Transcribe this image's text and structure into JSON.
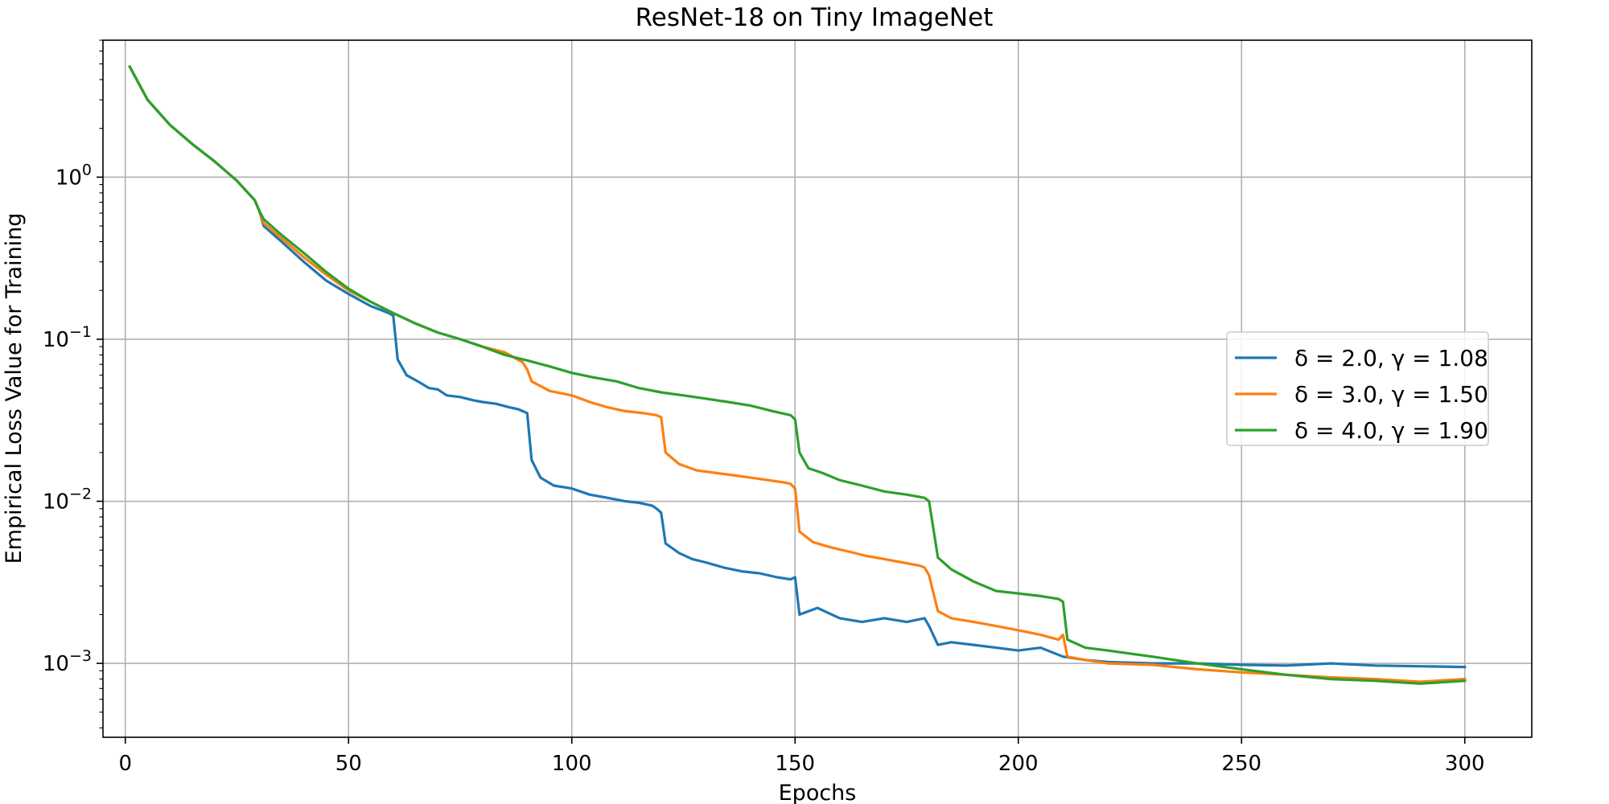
{
  "chart_data": {
    "type": "line",
    "title": "ResNet-18 on Tiny ImageNet",
    "xlabel": "Epochs",
    "ylabel": "Empirical Loss Value for Training",
    "xlim": [
      -5,
      315
    ],
    "ylim": [
      0.00035,
      7.0
    ],
    "yscale": "log",
    "x_ticks": [
      0,
      50,
      100,
      150,
      200,
      250,
      300
    ],
    "y_ticks": [
      {
        "value": 0.001,
        "base": "10",
        "exp": "−3"
      },
      {
        "value": 0.01,
        "base": "10",
        "exp": "−2"
      },
      {
        "value": 0.1,
        "base": "10",
        "exp": "−1"
      },
      {
        "value": 1,
        "base": "10",
        "exp": "0"
      }
    ],
    "grid": true,
    "legend_position": "center-right",
    "series": [
      {
        "name": "δ = 2.0, γ = 1.08",
        "color": "#1f77b4",
        "points": [
          [
            1,
            4.8
          ],
          [
            5,
            3.0
          ],
          [
            10,
            2.1
          ],
          [
            15,
            1.6
          ],
          [
            20,
            1.25
          ],
          [
            25,
            0.95
          ],
          [
            29,
            0.72
          ],
          [
            30,
            0.62
          ],
          [
            31,
            0.5
          ],
          [
            35,
            0.4
          ],
          [
            40,
            0.3
          ],
          [
            45,
            0.23
          ],
          [
            50,
            0.19
          ],
          [
            55,
            0.16
          ],
          [
            59,
            0.145
          ],
          [
            60,
            0.14
          ],
          [
            61,
            0.075
          ],
          [
            63,
            0.06
          ],
          [
            66,
            0.054
          ],
          [
            68,
            0.05
          ],
          [
            70,
            0.049
          ],
          [
            72,
            0.045
          ],
          [
            75,
            0.044
          ],
          [
            78,
            0.042
          ],
          [
            80,
            0.041
          ],
          [
            83,
            0.04
          ],
          [
            86,
            0.038
          ],
          [
            88,
            0.037
          ],
          [
            89,
            0.036
          ],
          [
            90,
            0.035
          ],
          [
            91,
            0.018
          ],
          [
            93,
            0.014
          ],
          [
            96,
            0.0125
          ],
          [
            100,
            0.012
          ],
          [
            104,
            0.011
          ],
          [
            108,
            0.0105
          ],
          [
            112,
            0.01
          ],
          [
            115,
            0.0098
          ],
          [
            118,
            0.0094
          ],
          [
            119,
            0.009
          ],
          [
            120,
            0.0085
          ],
          [
            121,
            0.0055
          ],
          [
            124,
            0.0048
          ],
          [
            127,
            0.0044
          ],
          [
            130,
            0.0042
          ],
          [
            134,
            0.0039
          ],
          [
            138,
            0.0037
          ],
          [
            142,
            0.0036
          ],
          [
            146,
            0.0034
          ],
          [
            149,
            0.0033
          ],
          [
            150,
            0.0034
          ],
          [
            151,
            0.002
          ],
          [
            155,
            0.0022
          ],
          [
            160,
            0.0019
          ],
          [
            165,
            0.0018
          ],
          [
            170,
            0.0019
          ],
          [
            175,
            0.0018
          ],
          [
            179,
            0.0019
          ],
          [
            180,
            0.0017
          ],
          [
            182,
            0.0013
          ],
          [
            185,
            0.00135
          ],
          [
            190,
            0.0013
          ],
          [
            195,
            0.00125
          ],
          [
            200,
            0.0012
          ],
          [
            205,
            0.00125
          ],
          [
            210,
            0.0011
          ],
          [
            215,
            0.00105
          ],
          [
            220,
            0.00102
          ],
          [
            230,
            0.001
          ],
          [
            240,
            0.001
          ],
          [
            250,
            0.00098
          ],
          [
            260,
            0.00097
          ],
          [
            270,
            0.001
          ],
          [
            280,
            0.00097
          ],
          [
            290,
            0.00096
          ],
          [
            300,
            0.00095
          ]
        ]
      },
      {
        "name": "δ = 3.0, γ = 1.50",
        "color": "#ff7f0e",
        "points": [
          [
            1,
            4.8
          ],
          [
            5,
            3.0
          ],
          [
            10,
            2.1
          ],
          [
            15,
            1.6
          ],
          [
            20,
            1.25
          ],
          [
            25,
            0.95
          ],
          [
            29,
            0.72
          ],
          [
            30,
            0.62
          ],
          [
            31,
            0.52
          ],
          [
            35,
            0.42
          ],
          [
            40,
            0.32
          ],
          [
            45,
            0.25
          ],
          [
            50,
            0.2
          ],
          [
            55,
            0.17
          ],
          [
            60,
            0.145
          ],
          [
            65,
            0.125
          ],
          [
            70,
            0.11
          ],
          [
            75,
            0.1
          ],
          [
            80,
            0.09
          ],
          [
            85,
            0.083
          ],
          [
            89,
            0.072
          ],
          [
            90,
            0.065
          ],
          [
            91,
            0.055
          ],
          [
            95,
            0.048
          ],
          [
            100,
            0.045
          ],
          [
            104,
            0.041
          ],
          [
            108,
            0.038
          ],
          [
            112,
            0.036
          ],
          [
            116,
            0.035
          ],
          [
            119,
            0.034
          ],
          [
            120,
            0.033
          ],
          [
            121,
            0.02
          ],
          [
            124,
            0.017
          ],
          [
            128,
            0.0155
          ],
          [
            132,
            0.015
          ],
          [
            136,
            0.0145
          ],
          [
            140,
            0.014
          ],
          [
            144,
            0.0135
          ],
          [
            148,
            0.013
          ],
          [
            149,
            0.0128
          ],
          [
            150,
            0.012
          ],
          [
            151,
            0.0065
          ],
          [
            154,
            0.0056
          ],
          [
            158,
            0.0052
          ],
          [
            162,
            0.0049
          ],
          [
            166,
            0.0046
          ],
          [
            170,
            0.0044
          ],
          [
            174,
            0.0042
          ],
          [
            178,
            0.004
          ],
          [
            179,
            0.0039
          ],
          [
            180,
            0.0035
          ],
          [
            182,
            0.0021
          ],
          [
            185,
            0.0019
          ],
          [
            190,
            0.0018
          ],
          [
            195,
            0.0017
          ],
          [
            200,
            0.0016
          ],
          [
            205,
            0.0015
          ],
          [
            209,
            0.0014
          ],
          [
            210,
            0.0015
          ],
          [
            211,
            0.0011
          ],
          [
            215,
            0.00105
          ],
          [
            220,
            0.001
          ],
          [
            230,
            0.00098
          ],
          [
            240,
            0.00092
          ],
          [
            250,
            0.00088
          ],
          [
            260,
            0.00085
          ],
          [
            270,
            0.00082
          ],
          [
            280,
            0.0008
          ],
          [
            290,
            0.00077
          ],
          [
            300,
            0.0008
          ]
        ]
      },
      {
        "name": "δ = 4.0, γ = 1.90",
        "color": "#2ca02c",
        "points": [
          [
            1,
            4.8
          ],
          [
            5,
            3.0
          ],
          [
            10,
            2.1
          ],
          [
            15,
            1.6
          ],
          [
            20,
            1.25
          ],
          [
            25,
            0.95
          ],
          [
            29,
            0.72
          ],
          [
            30,
            0.62
          ],
          [
            31,
            0.55
          ],
          [
            35,
            0.44
          ],
          [
            40,
            0.34
          ],
          [
            45,
            0.26
          ],
          [
            50,
            0.205
          ],
          [
            55,
            0.17
          ],
          [
            60,
            0.145
          ],
          [
            65,
            0.125
          ],
          [
            70,
            0.11
          ],
          [
            75,
            0.1
          ],
          [
            80,
            0.09
          ],
          [
            85,
            0.08
          ],
          [
            90,
            0.074
          ],
          [
            95,
            0.068
          ],
          [
            100,
            0.062
          ],
          [
            105,
            0.058
          ],
          [
            110,
            0.055
          ],
          [
            115,
            0.05
          ],
          [
            120,
            0.047
          ],
          [
            125,
            0.045
          ],
          [
            130,
            0.043
          ],
          [
            135,
            0.041
          ],
          [
            140,
            0.039
          ],
          [
            145,
            0.036
          ],
          [
            149,
            0.034
          ],
          [
            150,
            0.032
          ],
          [
            151,
            0.02
          ],
          [
            153,
            0.016
          ],
          [
            156,
            0.015
          ],
          [
            160,
            0.0135
          ],
          [
            165,
            0.0125
          ],
          [
            170,
            0.0115
          ],
          [
            175,
            0.011
          ],
          [
            179,
            0.0105
          ],
          [
            180,
            0.01
          ],
          [
            182,
            0.0045
          ],
          [
            185,
            0.0038
          ],
          [
            190,
            0.0032
          ],
          [
            195,
            0.0028
          ],
          [
            200,
            0.0027
          ],
          [
            205,
            0.0026
          ],
          [
            209,
            0.0025
          ],
          [
            210,
            0.0024
          ],
          [
            211,
            0.0014
          ],
          [
            215,
            0.00125
          ],
          [
            220,
            0.0012
          ],
          [
            230,
            0.0011
          ],
          [
            240,
            0.001
          ],
          [
            250,
            0.00092
          ],
          [
            260,
            0.00085
          ],
          [
            270,
            0.0008
          ],
          [
            280,
            0.00078
          ],
          [
            290,
            0.00075
          ],
          [
            300,
            0.00078
          ]
        ]
      }
    ]
  }
}
